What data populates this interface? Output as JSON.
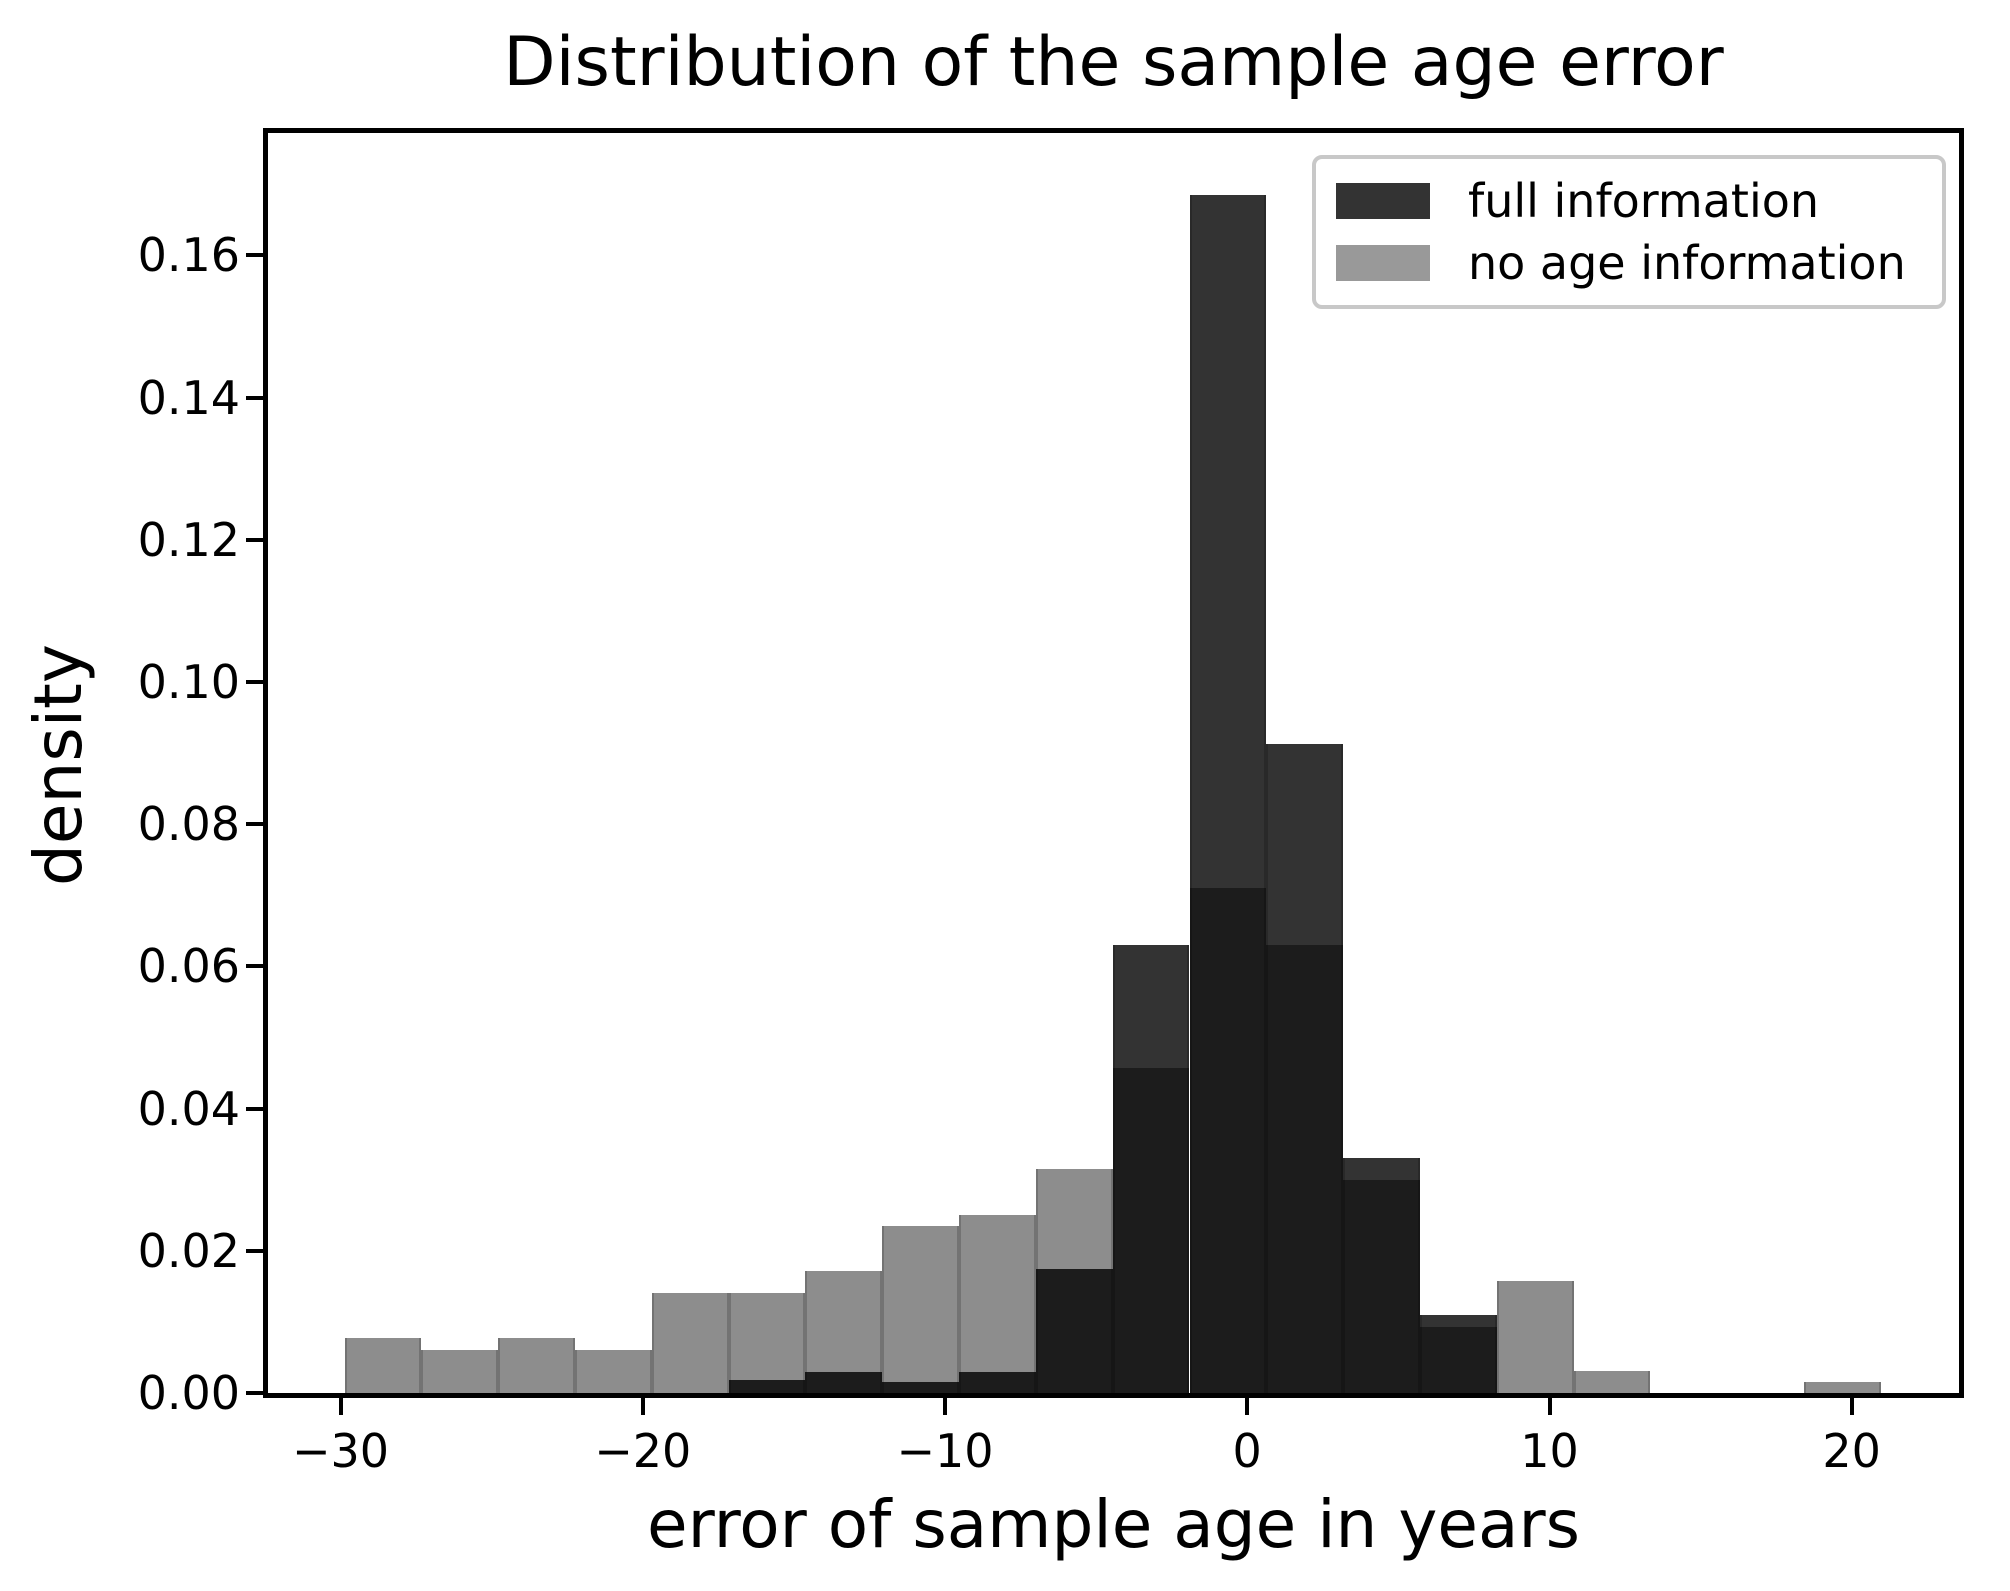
{
  "figure": {
    "title": "Distribution of the sample age error",
    "xlabel": "error of sample age in years",
    "ylabel": "density"
  },
  "legend": {
    "position": "upper right",
    "items": [
      {
        "label": "full information",
        "color": "#333333"
      },
      {
        "label": "no age information",
        "color": "#999999"
      }
    ]
  },
  "chart_data": {
    "type": "histogram",
    "title": "Distribution of the sample age error",
    "xlabel": "error of sample age in years",
    "ylabel": "density",
    "grid": false,
    "legend_position": "upper right",
    "xlim": [
      -32.4,
      23.55
    ],
    "ylim": [
      0,
      0.1772
    ],
    "bin_edges": [
      -29.87,
      -27.33,
      -24.79,
      -22.25,
      -19.7,
      -17.16,
      -14.62,
      -12.08,
      -9.54,
      -7.0,
      -4.45,
      -1.91,
      0.63,
      3.17,
      5.72,
      8.26,
      10.8,
      13.34,
      15.88,
      18.42,
      20.97
    ],
    "series": [
      {
        "name": "full information",
        "color": "#333333",
        "densities": [
          0,
          0,
          0,
          0,
          0,
          0.0018,
          0.003,
          0.0016,
          0.003,
          0.0174,
          0.063,
          0.1685,
          0.0913,
          0.0331,
          0.011,
          0,
          0,
          0,
          0,
          0
        ]
      },
      {
        "name": "no age information",
        "color": "#8d8d8d",
        "densities": [
          0.0077,
          0.0061,
          0.0077,
          0.0061,
          0.0141,
          0.0141,
          0.0172,
          0.0235,
          0.0251,
          0.0315,
          0.0457,
          0.071,
          0.063,
          0.0299,
          0.0093,
          0.0158,
          0.0031,
          0,
          0,
          0.0016
        ]
      }
    ],
    "overlap_color": "#1c1c1c",
    "x_ticks": [
      {
        "value": -30,
        "label": "−30"
      },
      {
        "value": -20,
        "label": "−20"
      },
      {
        "value": -10,
        "label": "−10"
      },
      {
        "value": 0,
        "label": "0"
      },
      {
        "value": 10,
        "label": "10"
      },
      {
        "value": 20,
        "label": "20"
      }
    ],
    "y_ticks": [
      {
        "value": 0.0,
        "label": "0.00"
      },
      {
        "value": 0.02,
        "label": "0.02"
      },
      {
        "value": 0.04,
        "label": "0.04"
      },
      {
        "value": 0.06,
        "label": "0.06"
      },
      {
        "value": 0.08,
        "label": "0.08"
      },
      {
        "value": 0.1,
        "label": "0.10"
      },
      {
        "value": 0.12,
        "label": "0.12"
      },
      {
        "value": 0.14,
        "label": "0.14"
      },
      {
        "value": 0.16,
        "label": "0.16"
      }
    ]
  }
}
